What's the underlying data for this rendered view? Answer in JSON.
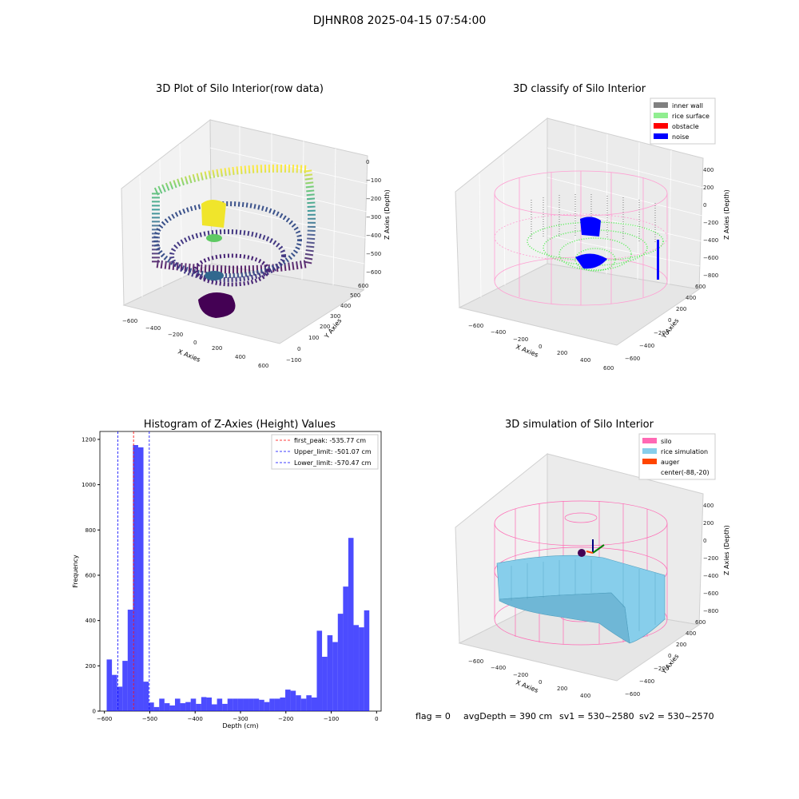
{
  "suptitle": "DJHNR08 2025-04-15 07:54:00",
  "status_line": {
    "flag": "flag = 0",
    "avg_depth": "avgDepth = 390 cm",
    "sv1": "sv1 = 530~2580",
    "sv2": "sv2 = 530~2570"
  },
  "chart_data": [
    {
      "type": "scatter",
      "title": "3D Plot of Silo Interior(row data)",
      "xlabel": "X Axies",
      "ylabel": "Y Axies",
      "zlabel": "Z Axies (Depth)",
      "x_ticks": [
        "−600",
        "−400",
        "−200",
        "0",
        "200",
        "400",
        "600"
      ],
      "y_ticks": [
        "−100",
        "0",
        "100",
        "200",
        "300",
        "400",
        "500",
        "600"
      ],
      "z_ticks": [
        "0",
        "−100",
        "−200",
        "−300",
        "−400",
        "−500",
        "−600"
      ],
      "colormap": "viridis"
    },
    {
      "type": "scatter",
      "title": "3D classify of Silo Interior",
      "xlabel": "X Axies",
      "ylabel": "Y Axies",
      "zlabel": "Z Axies (Depth)",
      "x_ticks": [
        "−600",
        "−400",
        "−200",
        "0",
        "200",
        "400",
        "600"
      ],
      "y_ticks": [
        "−600",
        "−400",
        "−200",
        "0",
        "200",
        "400",
        "600"
      ],
      "z_ticks": [
        "400",
        "200",
        "0",
        "−200",
        "−400",
        "−600",
        "−800"
      ],
      "legend": [
        {
          "label": "inner wall",
          "color": "#808080"
        },
        {
          "label": "rice surface",
          "color": "#90ee90"
        },
        {
          "label": "obstacle",
          "color": "#ff0000"
        },
        {
          "label": "noise",
          "color": "#0000ff"
        }
      ],
      "legend_position": "top-right"
    },
    {
      "type": "bar",
      "title": "Histogram of Z-Axies (Height) Values",
      "xlabel": "Depth (cm)",
      "ylabel": "Frequency",
      "xlim": [
        -610,
        10
      ],
      "ylim": [
        0,
        1235
      ],
      "x_ticks": [
        "−600",
        "−500",
        "−400",
        "−300",
        "−200",
        "−100",
        "0"
      ],
      "y_ticks": [
        "0",
        "200",
        "400",
        "600",
        "800",
        "1000",
        "1200"
      ],
      "bin_start": -595,
      "bin_width": 11.58,
      "values": [
        228,
        160,
        108,
        222,
        448,
        1175,
        1165,
        130,
        38,
        18,
        55,
        35,
        25,
        55,
        35,
        40,
        55,
        32,
        62,
        60,
        30,
        55,
        32,
        55,
        55,
        55,
        55,
        55,
        55,
        50,
        40,
        55,
        55,
        60,
        95,
        90,
        70,
        55,
        70,
        60,
        355,
        240,
        335,
        305,
        430,
        550,
        765,
        380,
        370,
        445
      ],
      "bar_color": "#0000ff",
      "vlines": [
        {
          "label": "first_peak: -535.77 cm",
          "x": -535.77,
          "color": "#ff0000"
        },
        {
          "label": "Upper_limit: -501.07 cm",
          "x": -501.07,
          "color": "#0000ff"
        },
        {
          "label": "Lower_limit: -570.47 cm",
          "x": -570.47,
          "color": "#0000ff"
        }
      ],
      "legend_position": "top-right"
    },
    {
      "type": "surface",
      "title": "3D simulation of Silo Interior",
      "xlabel": "X Axies",
      "ylabel": "Y Axies",
      "zlabel": "Z Axies (Depth)",
      "x_ticks": [
        "−600",
        "−400",
        "−200",
        "0",
        "200",
        "400"
      ],
      "y_ticks": [
        "−600",
        "−400",
        "−200",
        "0",
        "200",
        "400",
        "600"
      ],
      "z_ticks": [
        "400",
        "200",
        "0",
        "−200",
        "−400",
        "−600",
        "−800"
      ],
      "legend": [
        {
          "label": "silo",
          "color": "#ff69b4"
        },
        {
          "label": "rice simulation",
          "color": "#87ceeb"
        },
        {
          "label": "auger",
          "color": "#ff4500"
        },
        {
          "label": "center(-88,-20)",
          "color": ""
        }
      ],
      "legend_position": "top-right"
    }
  ]
}
